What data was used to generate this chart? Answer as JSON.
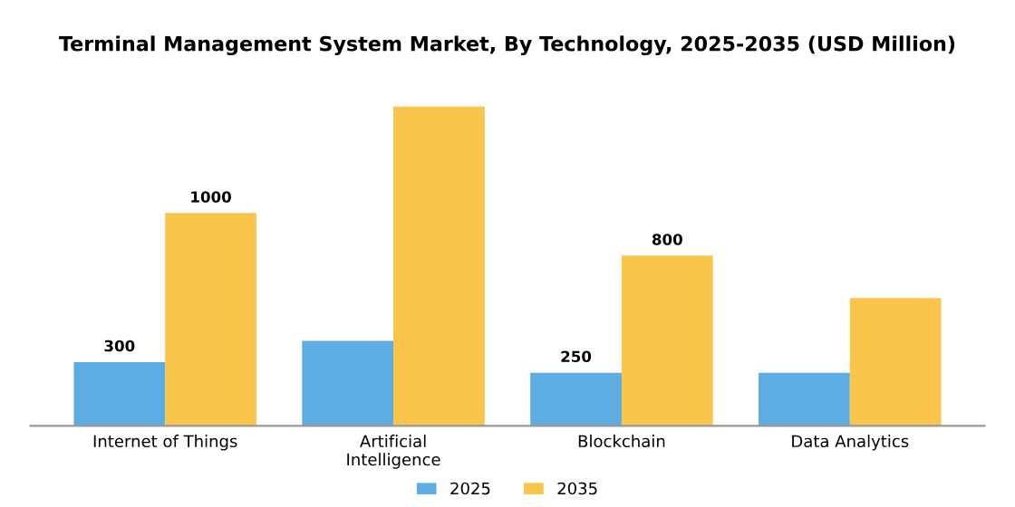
{
  "chart_data": {
    "type": "bar",
    "title": "Terminal Management System Market, By Technology, 2025-2035 (USD Million)",
    "categories": [
      "Internet of Things",
      "Artificial\nIntelligence",
      "Blockchain",
      "Data Analytics"
    ],
    "series": [
      {
        "name": "2025",
        "color": "#5dade2",
        "values": [
          300,
          400,
          250,
          250
        ],
        "value_labels": [
          "300",
          null,
          "250",
          null
        ]
      },
      {
        "name": "2035",
        "color": "#f9c54a",
        "values": [
          1000,
          1500,
          800,
          600
        ],
        "value_labels": [
          "1000",
          null,
          "800",
          null
        ]
      }
    ],
    "legend": "bottom",
    "grid": false
  }
}
